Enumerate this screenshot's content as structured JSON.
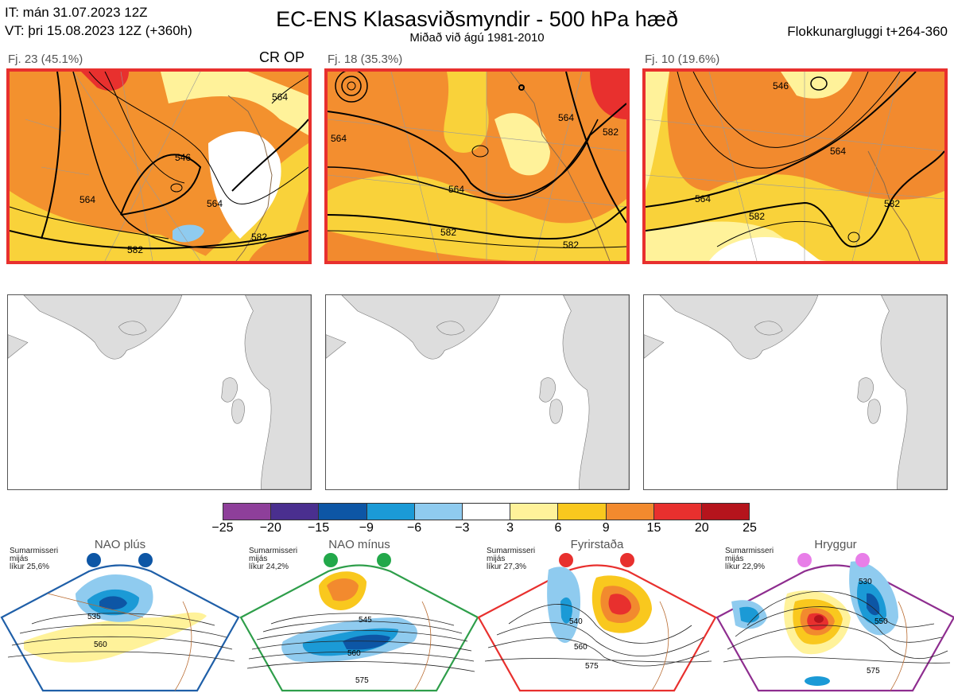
{
  "header": {
    "it_line": "IT: mán 31.07.2023 12Z",
    "vt_line": "VT: þri 15.08.2023 12Z  (+360h)",
    "title": "EC-ENS Klasasviðsmyndir - 500 hPa hæð",
    "subtitle": "Miðað við ágú 1981-2010",
    "window": "Flokkunargluggi t+264-360"
  },
  "clusters": [
    {
      "label": "Fj. 23 (45.1%)",
      "badge": "CR OP",
      "contours": [
        "546",
        "564",
        "564",
        "582",
        "582",
        "564"
      ]
    },
    {
      "label": "Fj. 18 (35.3%)",
      "badge": "",
      "contours": [
        "564",
        "564",
        "582",
        "582",
        "564",
        "582"
      ]
    },
    {
      "label": "Fj. 10 (19.6%)",
      "badge": "",
      "contours": [
        "564",
        "564",
        "546",
        "582",
        "582"
      ]
    }
  ],
  "colorbar": {
    "colors": [
      "#8e3f9a",
      "#4a2f8f",
      "#0d56a5",
      "#1b9ad6",
      "#8fcbef",
      "#ffffff",
      "#fff29a",
      "#f9c81e",
      "#f28a2e",
      "#e8302e",
      "#b5141c"
    ],
    "ticks": [
      "−25",
      "−20",
      "−15",
      "−9",
      "−6",
      "−3",
      "3",
      "6",
      "9",
      "15",
      "20",
      "25"
    ]
  },
  "regimes": [
    {
      "name": "NAO plús",
      "season": "Sumarmisseri",
      "line2": "mijás",
      "prob": "líkur 25,6%",
      "color": "#1f5fa8",
      "dot": "#0d56a5",
      "labels": [
        "535",
        "560"
      ]
    },
    {
      "name": "NAO mínus",
      "season": "Sumarmisseri",
      "line2": "mijás",
      "prob": "líkur 24,2%",
      "color": "#2e9e4a",
      "dot": "#22a84a",
      "labels": [
        "545",
        "560",
        "575"
      ]
    },
    {
      "name": "Fyrirstaða",
      "season": "Sumarmisseri",
      "line2": "mijás",
      "prob": "líkur 27,3%",
      "color": "#e8302e",
      "dot": "#e8302e",
      "labels": [
        "540",
        "560",
        "575"
      ]
    },
    {
      "name": "Hryggur",
      "season": "Sumarmisseri",
      "line2": "mijás",
      "prob": "líkur 22,9%",
      "color": "#8e2d8f",
      "dot": "#e87ee8",
      "labels": [
        "530",
        "550",
        "575"
      ]
    }
  ]
}
